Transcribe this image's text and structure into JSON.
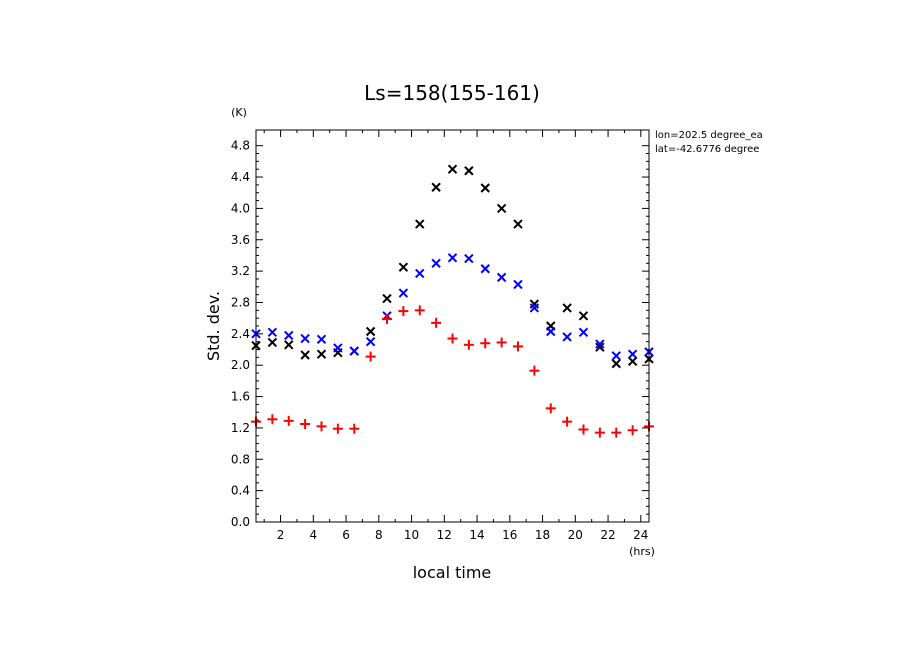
{
  "chart_data": {
    "type": "scatter",
    "title": "Ls=158(155-161)",
    "xlabel": "local time",
    "ylabel": "Std. dev.",
    "x_unit": "(hrs)",
    "y_unit": "(K)",
    "annotation_lines": [
      "lon=202.5 degree_ea",
      "lat=-42.6776 degree"
    ],
    "xlim": [
      0.5,
      24.5
    ],
    "ylim": [
      0.0,
      5.0
    ],
    "xticks": [
      2,
      4,
      6,
      8,
      10,
      12,
      14,
      16,
      18,
      20,
      22,
      24
    ],
    "yticks": [
      "0.0",
      "0.4",
      "0.8",
      "1.2",
      "1.6",
      "2.0",
      "2.4",
      "2.8",
      "3.2",
      "3.6",
      "4.0",
      "4.4",
      "4.8"
    ],
    "grid": false,
    "x": [
      0.5,
      1.5,
      2.5,
      3.5,
      4.5,
      5.5,
      6.5,
      7.5,
      8.5,
      9.5,
      10.5,
      11.5,
      12.5,
      13.5,
      14.5,
      15.5,
      16.5,
      17.5,
      18.5,
      19.5,
      20.5,
      21.5,
      22.5,
      23.5,
      24.5
    ],
    "series": [
      {
        "marker": "x",
        "color": "#000000",
        "values": [
          2.25,
          2.29,
          2.26,
          2.13,
          2.14,
          2.16,
          2.18,
          2.43,
          2.85,
          3.25,
          3.8,
          4.27,
          4.5,
          4.48,
          4.26,
          4.0,
          3.8,
          2.78,
          2.5,
          2.73,
          2.63,
          2.23,
          2.02,
          2.05,
          2.08
        ]
      },
      {
        "marker": "x",
        "color": "#0000ff",
        "values": [
          2.4,
          2.42,
          2.38,
          2.34,
          2.33,
          2.22,
          2.18,
          2.3,
          2.63,
          2.92,
          3.17,
          3.3,
          3.37,
          3.36,
          3.23,
          3.12,
          3.03,
          2.73,
          2.43,
          2.36,
          2.42,
          2.27,
          2.12,
          2.14,
          2.17
        ]
      },
      {
        "marker": "+",
        "color": "#ff0000",
        "values": [
          1.28,
          1.31,
          1.29,
          1.25,
          1.22,
          1.19,
          1.19,
          2.11,
          2.59,
          2.69,
          2.7,
          2.54,
          2.34,
          2.26,
          2.28,
          2.29,
          2.24,
          1.93,
          1.45,
          1.28,
          1.18,
          1.14,
          1.14,
          1.17,
          1.22
        ]
      }
    ]
  }
}
